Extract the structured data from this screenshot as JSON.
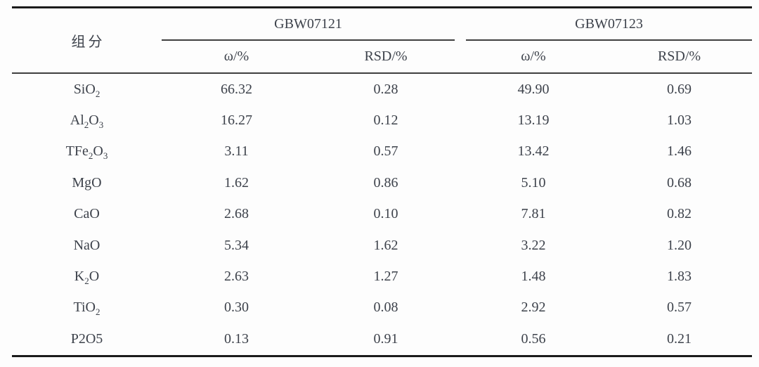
{
  "table": {
    "component_header": "组分",
    "groups": [
      {
        "label": "GBW07121",
        "subcols": [
          "ω/%",
          "RSD/%"
        ]
      },
      {
        "label": "GBW07123",
        "subcols": [
          "ω/%",
          "RSD/%"
        ]
      }
    ],
    "rows": [
      {
        "formula": [
          [
            "SiO",
            "2"
          ]
        ],
        "values": [
          "66.32",
          "0.28",
          "49.90",
          "0.69"
        ]
      },
      {
        "formula": [
          [
            "Al",
            "2"
          ],
          [
            "O",
            "3"
          ]
        ],
        "values": [
          "16.27",
          "0.12",
          "13.19",
          "1.03"
        ]
      },
      {
        "formula": [
          [
            "TFe",
            "2"
          ],
          [
            "O",
            "3"
          ]
        ],
        "values": [
          "3.11",
          "0.57",
          "13.42",
          "1.46"
        ]
      },
      {
        "formula": [
          [
            "MgO",
            ""
          ]
        ],
        "values": [
          "1.62",
          "0.86",
          "5.10",
          "0.68"
        ]
      },
      {
        "formula": [
          [
            "CaO",
            ""
          ]
        ],
        "values": [
          "2.68",
          "0.10",
          "7.81",
          "0.82"
        ]
      },
      {
        "formula": [
          [
            "NaO",
            ""
          ]
        ],
        "values": [
          "5.34",
          "1.62",
          "3.22",
          "1.20"
        ]
      },
      {
        "formula": [
          [
            "K",
            "2"
          ],
          [
            "O",
            ""
          ]
        ],
        "values": [
          "2.63",
          "1.27",
          "1.48",
          "1.83"
        ]
      },
      {
        "formula": [
          [
            "TiO",
            "2"
          ]
        ],
        "values": [
          "0.30",
          "0.08",
          "2.92",
          "0.57"
        ]
      },
      {
        "formula": [
          [
            "P2O5",
            ""
          ]
        ],
        "values": [
          "0.13",
          "0.91",
          "0.56",
          "0.21"
        ]
      }
    ]
  },
  "colors": {
    "background": "#fdfdfd",
    "text": "#3d424b",
    "rule_thick": "#1b1b1b",
    "rule_thin": "#3f3f3f"
  }
}
